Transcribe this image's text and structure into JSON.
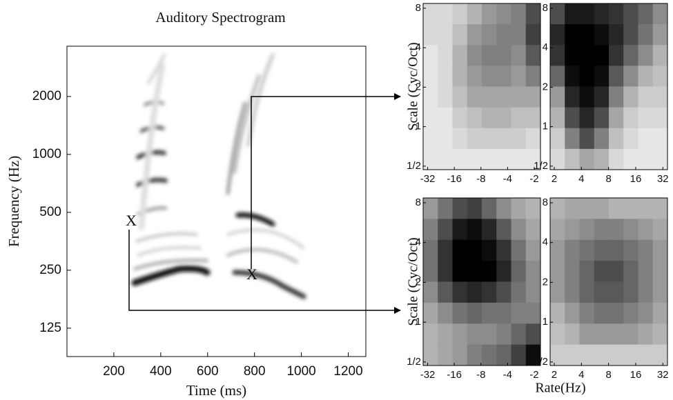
{
  "chart_data": [
    {
      "type": "spectrogram",
      "title": "Auditory Spectrogram",
      "xlabel": "Time (ms)",
      "ylabel": "Frequency (Hz)",
      "xlim": [
        0,
        1275
      ],
      "xticks": [
        200,
        400,
        600,
        800,
        1000,
        1200
      ],
      "ylim": [
        89,
        3650
      ],
      "log_y": true,
      "yticks": [
        125,
        250,
        500,
        1000,
        2000
      ],
      "annotations": [
        {
          "text": "X",
          "x": 274,
          "y": 446
        },
        {
          "text": "X",
          "x": 789,
          "y": 234
        }
      ]
    },
    {
      "type": "heatmap",
      "ylabel": "Scale (Cyc/Oct)",
      "xlim": [
        -36,
        -1.7
      ],
      "xticks": [
        -32,
        -16,
        -8,
        -4,
        -2
      ],
      "ylim": [
        0.47,
        8.7
      ],
      "yticks": [
        8,
        4,
        2,
        1,
        {
          "value": 0.5,
          "label": "1/2"
        }
      ],
      "values": [
        [
          0.15,
          0.15,
          0.2,
          0.3,
          0.4,
          0.45,
          0.5,
          0.7
        ],
        [
          0.15,
          0.15,
          0.25,
          0.4,
          0.45,
          0.5,
          0.5,
          0.75
        ],
        [
          0.1,
          0.15,
          0.3,
          0.45,
          0.5,
          0.5,
          0.45,
          0.65
        ],
        [
          0.1,
          0.15,
          0.3,
          0.4,
          0.45,
          0.45,
          0.4,
          0.5
        ],
        [
          0.1,
          0.15,
          0.25,
          0.35,
          0.35,
          0.35,
          0.35,
          0.35
        ],
        [
          0.1,
          0.1,
          0.2,
          0.25,
          0.3,
          0.3,
          0.25,
          0.25
        ],
        [
          0.1,
          0.1,
          0.15,
          0.2,
          0.2,
          0.2,
          0.2,
          0.15
        ],
        [
          0.1,
          0.1,
          0.1,
          0.1,
          0.1,
          0.1,
          0.1,
          0.1
        ]
      ]
    },
    {
      "type": "heatmap",
      "xlim": [
        1.8,
        36
      ],
      "xticks": [
        2,
        4,
        8,
        16,
        32
      ],
      "ylim": [
        0.47,
        8.7
      ],
      "yticks": [
        8,
        4,
        2,
        1,
        {
          "value": 0.5,
          "label": "1/2"
        }
      ],
      "values": [
        [
          0.7,
          0.9,
          0.9,
          0.85,
          0.8,
          0.7,
          0.6,
          0.45
        ],
        [
          0.85,
          1,
          1,
          0.95,
          0.85,
          0.7,
          0.55,
          0.4
        ],
        [
          0.8,
          1,
          1,
          1,
          0.8,
          0.6,
          0.45,
          0.3
        ],
        [
          0.6,
          0.95,
          1,
          0.95,
          0.65,
          0.45,
          0.3,
          0.25
        ],
        [
          0.4,
          0.85,
          0.95,
          0.85,
          0.5,
          0.3,
          0.2,
          0.2
        ],
        [
          0.3,
          0.7,
          0.85,
          0.7,
          0.35,
          0.2,
          0.15,
          0.15
        ],
        [
          0.2,
          0.5,
          0.7,
          0.5,
          0.25,
          0.15,
          0.1,
          0.1
        ],
        [
          0.15,
          0.25,
          0.35,
          0.3,
          0.15,
          0.1,
          0.1,
          0.1
        ]
      ]
    },
    {
      "type": "heatmap",
      "ylabel": "Scale (Cyc/Oct)",
      "xlim": [
        -36,
        -1.7
      ],
      "xticks": [
        -32,
        -16,
        -8,
        -4,
        -2
      ],
      "ylim": [
        0.47,
        8.7
      ],
      "yticks": [
        8,
        4,
        2,
        1,
        {
          "value": 0.5,
          "label": "1/2"
        }
      ],
      "values": [
        [
          0.4,
          0.55,
          0.7,
          0.75,
          0.6,
          0.45,
          0.35,
          0.3
        ],
        [
          0.5,
          0.7,
          0.9,
          0.95,
          0.85,
          0.65,
          0.45,
          0.35
        ],
        [
          0.55,
          0.8,
          1,
          1,
          0.95,
          0.8,
          0.55,
          0.4
        ],
        [
          0.55,
          0.8,
          1,
          1,
          1,
          0.85,
          0.6,
          0.45
        ],
        [
          0.45,
          0.65,
          0.8,
          0.85,
          0.8,
          0.7,
          0.55,
          0.45
        ],
        [
          0.35,
          0.45,
          0.55,
          0.6,
          0.55,
          0.55,
          0.5,
          0.5
        ],
        [
          0.3,
          0.35,
          0.4,
          0.45,
          0.45,
          0.5,
          0.6,
          0.7
        ],
        [
          0.3,
          0.35,
          0.4,
          0.5,
          0.55,
          0.6,
          0.75,
          0.95
        ]
      ]
    },
    {
      "type": "heatmap",
      "xlabel": "Rate(Hz)",
      "xlim": [
        1.8,
        36
      ],
      "xticks": [
        2,
        4,
        8,
        16,
        32
      ],
      "ylim": [
        0.47,
        8.7
      ],
      "yticks": [
        8,
        4,
        2,
        1,
        {
          "value": 0.5,
          "label": "1/2"
        }
      ],
      "values": [
        [
          0.3,
          0.35,
          0.35,
          0.35,
          0.3,
          0.3,
          0.3,
          0.3
        ],
        [
          0.35,
          0.4,
          0.45,
          0.5,
          0.5,
          0.45,
          0.4,
          0.35
        ],
        [
          0.4,
          0.5,
          0.55,
          0.6,
          0.6,
          0.55,
          0.5,
          0.4
        ],
        [
          0.4,
          0.5,
          0.6,
          0.7,
          0.7,
          0.6,
          0.5,
          0.4
        ],
        [
          0.4,
          0.5,
          0.6,
          0.65,
          0.65,
          0.6,
          0.5,
          0.4
        ],
        [
          0.3,
          0.4,
          0.5,
          0.55,
          0.55,
          0.5,
          0.45,
          0.35
        ],
        [
          0.25,
          0.3,
          0.4,
          0.4,
          0.4,
          0.4,
          0.35,
          0.3
        ],
        [
          0.2,
          0.2,
          0.2,
          0.2,
          0.2,
          0.2,
          0.2,
          0.2
        ]
      ]
    }
  ]
}
